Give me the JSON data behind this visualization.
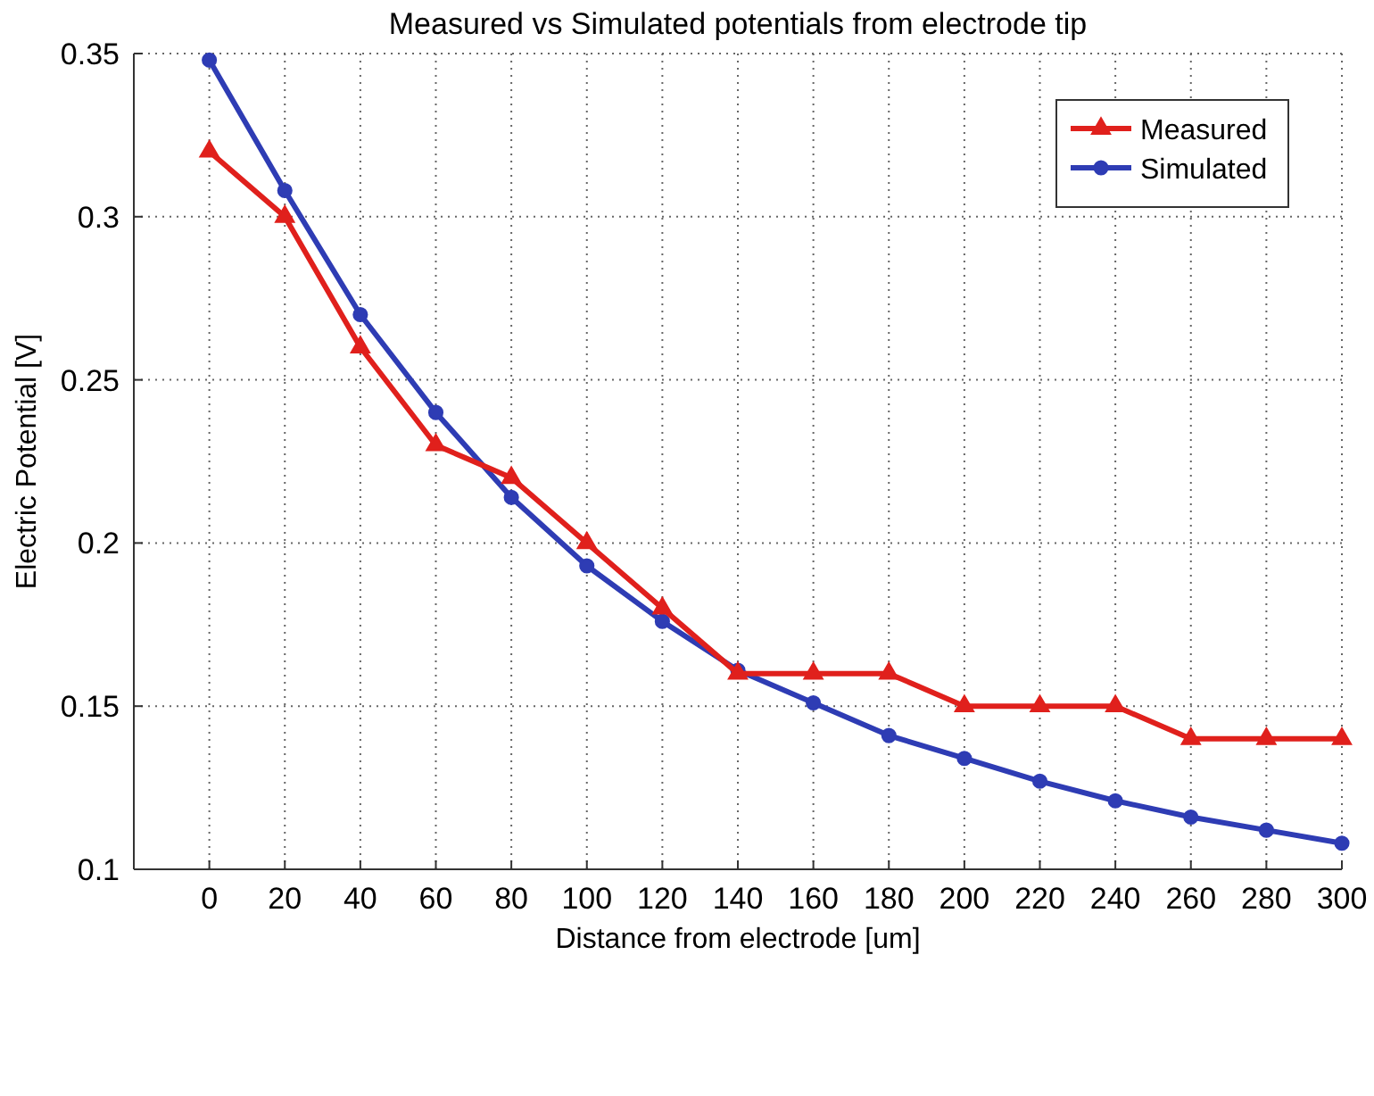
{
  "chart_data": {
    "type": "line",
    "title": "Measured vs Simulated potentials from electrode tip",
    "xlabel": "Distance from electrode [um]",
    "ylabel": "Electric Potential [V]",
    "x": [
      0,
      20,
      40,
      60,
      80,
      100,
      120,
      140,
      160,
      180,
      200,
      220,
      240,
      260,
      280,
      300
    ],
    "series": [
      {
        "name": "Measured",
        "color": "#e0201c",
        "marker": "triangle",
        "values": [
          0.32,
          0.3,
          0.26,
          0.23,
          0.22,
          0.2,
          0.18,
          0.16,
          0.16,
          0.16,
          0.15,
          0.15,
          0.15,
          0.14,
          0.14,
          0.14
        ]
      },
      {
        "name": "Simulated",
        "color": "#2e3cb4",
        "marker": "circle",
        "values": [
          0.348,
          0.308,
          0.27,
          0.24,
          0.214,
          0.193,
          0.176,
          0.161,
          0.151,
          0.141,
          0.134,
          0.127,
          0.121,
          0.116,
          0.112,
          0.108
        ]
      }
    ],
    "xlim": [
      -20,
      300
    ],
    "xticks": [
      0,
      20,
      40,
      60,
      80,
      100,
      120,
      140,
      160,
      180,
      200,
      220,
      240,
      260,
      280,
      300
    ],
    "ylim": [
      0.1,
      0.35
    ],
    "yticks": [
      0.1,
      0.15,
      0.2,
      0.25,
      0.3,
      0.35
    ],
    "grid": true,
    "legend": "top right",
    "line_style": "solid"
  }
}
